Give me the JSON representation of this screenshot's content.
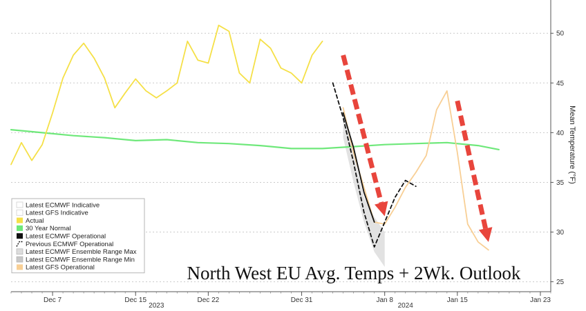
{
  "chart_data": {
    "type": "line",
    "title": "North West EU Avg. Temps + 2Wk. Outlook",
    "ylabel": "Mean Temperature (°F)",
    "y_axis_side": "right",
    "ylim": [
      24,
      53
    ],
    "yticks": [
      25,
      30,
      35,
      40,
      45,
      50
    ],
    "x_domain": [
      "2023-12-03",
      "2024-01-24"
    ],
    "x_ticks": [
      {
        "date": "2023-12-07",
        "label": "Dec 7"
      },
      {
        "date": "2023-12-15",
        "label": "Dec 15"
      },
      {
        "date": "2023-12-22",
        "label": "Dec 22"
      },
      {
        "date": "2023-12-31",
        "label": "Dec 31"
      },
      {
        "date": "2024-01-08",
        "label": "Jan 8"
      },
      {
        "date": "2024-01-15",
        "label": "Jan 15"
      },
      {
        "date": "2024-01-23",
        "label": "Jan 23"
      }
    ],
    "year_labels": [
      {
        "date": "2023-12-17",
        "label": "2023"
      },
      {
        "date": "2024-01-10",
        "label": "2024"
      }
    ],
    "grid": "horizontal",
    "legend_position": "bottom-left",
    "series": [
      {
        "name": "Latest ECMWF Indicative",
        "legend_style": "empty",
        "color": "#ffffff",
        "points": []
      },
      {
        "name": "Latest GFS Indicative",
        "legend_style": "empty",
        "color": "#ffffff",
        "points": []
      },
      {
        "name": "Actual",
        "legend_style": "line",
        "color": "#f5e047",
        "width": 1.8,
        "points": [
          [
            "2023-12-03",
            36.8
          ],
          [
            "2023-12-04",
            39.0
          ],
          [
            "2023-12-05",
            37.2
          ],
          [
            "2023-12-06",
            38.8
          ],
          [
            "2023-12-07",
            42.0
          ],
          [
            "2023-12-08",
            45.5
          ],
          [
            "2023-12-09",
            47.8
          ],
          [
            "2023-12-10",
            49.0
          ],
          [
            "2023-12-11",
            47.5
          ],
          [
            "2023-12-12",
            45.5
          ],
          [
            "2023-12-13",
            42.5
          ],
          [
            "2023-12-14",
            44.0
          ],
          [
            "2023-12-15",
            45.4
          ],
          [
            "2023-12-16",
            44.2
          ],
          [
            "2023-12-17",
            43.5
          ],
          [
            "2023-12-18",
            44.2
          ],
          [
            "2023-12-19",
            45.0
          ],
          [
            "2023-12-20",
            49.2
          ],
          [
            "2023-12-21",
            47.3
          ],
          [
            "2023-12-22",
            47.0
          ],
          [
            "2023-12-23",
            50.8
          ],
          [
            "2023-12-24",
            50.2
          ],
          [
            "2023-12-25",
            46.0
          ],
          [
            "2023-12-26",
            45.0
          ],
          [
            "2023-12-27",
            49.4
          ],
          [
            "2023-12-28",
            48.5
          ],
          [
            "2023-12-29",
            46.5
          ],
          [
            "2023-12-30",
            46.0
          ],
          [
            "2023-12-31",
            45.0
          ],
          [
            "2024-01-01",
            47.8
          ],
          [
            "2024-01-02",
            49.2
          ]
        ]
      },
      {
        "name": "30 Year Normal",
        "legend_style": "line",
        "color": "#6ee87a",
        "width": 2.2,
        "points": [
          [
            "2023-12-03",
            40.3
          ],
          [
            "2023-12-06",
            40.0
          ],
          [
            "2023-12-09",
            39.7
          ],
          [
            "2023-12-12",
            39.5
          ],
          [
            "2023-12-15",
            39.2
          ],
          [
            "2023-12-18",
            39.3
          ],
          [
            "2023-12-21",
            39.0
          ],
          [
            "2023-12-24",
            38.9
          ],
          [
            "2023-12-27",
            38.7
          ],
          [
            "2023-12-30",
            38.4
          ],
          [
            "2024-01-02",
            38.4
          ],
          [
            "2024-01-05",
            38.6
          ],
          [
            "2024-01-08",
            38.8
          ],
          [
            "2024-01-11",
            38.9
          ],
          [
            "2024-01-14",
            39.0
          ],
          [
            "2024-01-17",
            38.7
          ],
          [
            "2024-01-19",
            38.3
          ]
        ]
      },
      {
        "name": "Latest ECMWF Operational",
        "legend_style": "line",
        "color": "#111111",
        "width": 1.8,
        "points": [
          [
            "2024-01-04",
            42.0
          ],
          [
            "2024-01-05",
            38.5
          ],
          [
            "2024-01-06",
            34.0
          ],
          [
            "2024-01-07",
            31.0
          ]
        ]
      },
      {
        "name": "Previous ECMWF Operational",
        "legend_style": "dashed",
        "color": "#111111",
        "width": 1.8,
        "points": [
          [
            "2024-01-03",
            45.0
          ],
          [
            "2024-01-04",
            41.5
          ],
          [
            "2024-01-05",
            37.0
          ],
          [
            "2024-01-06",
            32.0
          ],
          [
            "2024-01-07",
            28.5
          ],
          [
            "2024-01-08",
            31.0
          ],
          [
            "2024-01-09",
            33.5
          ],
          [
            "2024-01-10",
            35.2
          ],
          [
            "2024-01-11",
            34.6
          ]
        ]
      },
      {
        "name": "Latest ECMWF Ensemble Range Max",
        "legend_style": "box",
        "color": "#dcdcdc",
        "points": []
      },
      {
        "name": "Latest ECMWF Ensemble Range Min",
        "legend_style": "box",
        "color": "#c8c8c8",
        "points": []
      },
      {
        "name": "Latest GFS Operational",
        "legend_style": "line",
        "color": "#f8cf95",
        "width": 1.8,
        "points": [
          [
            "2024-01-04",
            42.5
          ],
          [
            "2024-01-05",
            38.0
          ],
          [
            "2024-01-06",
            34.5
          ],
          [
            "2024-01-07",
            31.0
          ],
          [
            "2024-01-08",
            30.8
          ],
          [
            "2024-01-09",
            32.5
          ],
          [
            "2024-01-10",
            34.5
          ],
          [
            "2024-01-11",
            36.0
          ],
          [
            "2024-01-12",
            37.7
          ],
          [
            "2024-01-13",
            42.3
          ],
          [
            "2024-01-14",
            44.2
          ],
          [
            "2024-01-15",
            38.0
          ],
          [
            "2024-01-16",
            30.8
          ],
          [
            "2024-01-17",
            29.0
          ],
          [
            "2024-01-18",
            28.2
          ]
        ]
      }
    ],
    "ensemble_band": {
      "color": "#e2e2e2",
      "upper": [
        [
          "2024-01-04",
          42.0
        ],
        [
          "2024-01-05",
          38.0
        ],
        [
          "2024-01-06",
          33.5
        ],
        [
          "2024-01-07",
          31.5
        ],
        [
          "2024-01-08",
          30.0
        ]
      ],
      "lower": [
        [
          "2024-01-08",
          26.5
        ],
        [
          "2024-01-07",
          28.0
        ],
        [
          "2024-01-06",
          31.0
        ],
        [
          "2024-01-05",
          35.0
        ],
        [
          "2024-01-04",
          39.5
        ]
      ]
    },
    "annotation_arrows": [
      {
        "from": [
          "2024-01-04",
          47.8
        ],
        "to": [
          "2024-01-08",
          31.6
        ],
        "color": "#e8453c"
      },
      {
        "from": [
          "2024-01-15",
          43.2
        ],
        "to": [
          "2024-01-18",
          29.0
        ],
        "color": "#e8453c"
      }
    ]
  }
}
